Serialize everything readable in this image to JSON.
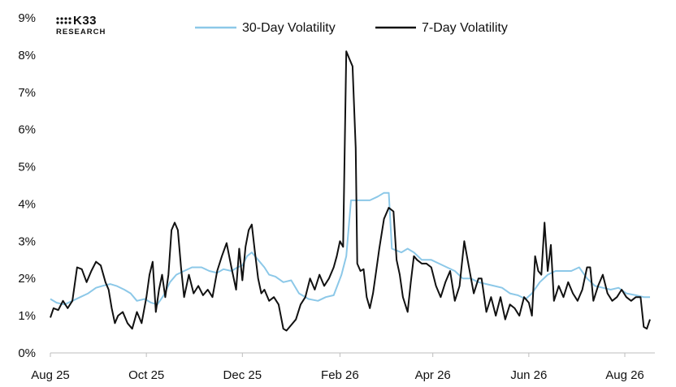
{
  "logo": {
    "name": "K33",
    "sub": "RESEARCH"
  },
  "chart_data": {
    "type": "line",
    "title": "",
    "xlabel": "",
    "ylabel": "",
    "x_ticks": [
      "Aug 25",
      "Oct 25",
      "Dec 25",
      "Feb 26",
      "Apr 26",
      "Jun 26",
      "Aug 26"
    ],
    "y_ticks": [
      "0%",
      "1%",
      "2%",
      "3%",
      "4%",
      "5%",
      "6%",
      "7%",
      "8%",
      "9%"
    ],
    "ylim": [
      0,
      9
    ],
    "x_range": [
      "2025-08-01",
      "2026-08-17"
    ],
    "grid": false,
    "legend_position": "top-center",
    "colors": {
      "30d": "#8cc8e8",
      "7d": "#111111"
    },
    "series": [
      {
        "name": "30-Day Volatility",
        "key": "30d",
        "points": [
          [
            "2025-08-01",
            1.45
          ],
          [
            "2025-08-05",
            1.35
          ],
          [
            "2025-08-10",
            1.3
          ],
          [
            "2025-08-15",
            1.4
          ],
          [
            "2025-08-20",
            1.5
          ],
          [
            "2025-08-25",
            1.6
          ],
          [
            "2025-08-30",
            1.75
          ],
          [
            "2025-09-03",
            1.8
          ],
          [
            "2025-09-08",
            1.85
          ],
          [
            "2025-09-12",
            1.8
          ],
          [
            "2025-09-17",
            1.7
          ],
          [
            "2025-09-21",
            1.6
          ],
          [
            "2025-09-25",
            1.4
          ],
          [
            "2025-09-30",
            1.45
          ],
          [
            "2025-10-04",
            1.35
          ],
          [
            "2025-10-08",
            1.3
          ],
          [
            "2025-10-12",
            1.55
          ],
          [
            "2025-10-16",
            1.9
          ],
          [
            "2025-10-20",
            2.1
          ],
          [
            "2025-10-25",
            2.2
          ],
          [
            "2025-10-30",
            2.3
          ],
          [
            "2025-11-05",
            2.3
          ],
          [
            "2025-11-10",
            2.2
          ],
          [
            "2025-11-15",
            2.15
          ],
          [
            "2025-11-19",
            2.25
          ],
          [
            "2025-11-24",
            2.2
          ],
          [
            "2025-11-28",
            2.3
          ],
          [
            "2025-12-01",
            2.35
          ],
          [
            "2025-12-04",
            2.6
          ],
          [
            "2025-12-07",
            2.7
          ],
          [
            "2025-12-11",
            2.5
          ],
          [
            "2025-12-15",
            2.3
          ],
          [
            "2025-12-18",
            2.1
          ],
          [
            "2025-12-22",
            2.05
          ],
          [
            "2025-12-27",
            1.9
          ],
          [
            "2026-01-01",
            1.95
          ],
          [
            "2026-01-06",
            1.6
          ],
          [
            "2026-01-12",
            1.45
          ],
          [
            "2026-01-18",
            1.4
          ],
          [
            "2026-01-23",
            1.5
          ],
          [
            "2026-01-28",
            1.55
          ],
          [
            "2026-02-02",
            2.1
          ],
          [
            "2026-02-05",
            2.6
          ],
          [
            "2026-02-08",
            4.1
          ],
          [
            "2026-02-14",
            4.1
          ],
          [
            "2026-02-20",
            4.1
          ],
          [
            "2026-02-25",
            4.2
          ],
          [
            "2026-03-01",
            4.3
          ],
          [
            "2026-03-04",
            4.3
          ],
          [
            "2026-03-06",
            2.8
          ],
          [
            "2026-03-12",
            2.7
          ],
          [
            "2026-03-16",
            2.8
          ],
          [
            "2026-03-20",
            2.7
          ],
          [
            "2026-03-25",
            2.5
          ],
          [
            "2026-03-31",
            2.5
          ],
          [
            "2026-04-05",
            2.4
          ],
          [
            "2026-04-10",
            2.3
          ],
          [
            "2026-04-15",
            2.2
          ],
          [
            "2026-04-20",
            2.0
          ],
          [
            "2026-04-25",
            2.0
          ],
          [
            "2026-04-30",
            1.9
          ],
          [
            "2026-05-05",
            1.85
          ],
          [
            "2026-05-10",
            1.8
          ],
          [
            "2026-05-15",
            1.75
          ],
          [
            "2026-05-20",
            1.6
          ],
          [
            "2026-05-25",
            1.55
          ],
          [
            "2026-05-30",
            1.45
          ],
          [
            "2026-06-03",
            1.6
          ],
          [
            "2026-06-08",
            1.9
          ],
          [
            "2026-06-13",
            2.1
          ],
          [
            "2026-06-18",
            2.2
          ],
          [
            "2026-06-23",
            2.2
          ],
          [
            "2026-06-28",
            2.2
          ],
          [
            "2026-07-03",
            2.3
          ],
          [
            "2026-07-08",
            2.0
          ],
          [
            "2026-07-13",
            1.8
          ],
          [
            "2026-07-18",
            1.75
          ],
          [
            "2026-07-23",
            1.7
          ],
          [
            "2026-07-28",
            1.75
          ],
          [
            "2026-08-02",
            1.6
          ],
          [
            "2026-08-08",
            1.55
          ],
          [
            "2026-08-13",
            1.5
          ],
          [
            "2026-08-17",
            1.5
          ]
        ]
      },
      {
        "name": "7-Day Volatility",
        "key": "7d",
        "points": [
          [
            "2025-08-01",
            0.95
          ],
          [
            "2025-08-03",
            1.2
          ],
          [
            "2025-08-06",
            1.15
          ],
          [
            "2025-08-09",
            1.4
          ],
          [
            "2025-08-12",
            1.2
          ],
          [
            "2025-08-15",
            1.4
          ],
          [
            "2025-08-18",
            2.3
          ],
          [
            "2025-08-21",
            2.25
          ],
          [
            "2025-08-24",
            1.9
          ],
          [
            "2025-08-27",
            2.2
          ],
          [
            "2025-08-30",
            2.45
          ],
          [
            "2025-09-02",
            2.35
          ],
          [
            "2025-09-05",
            1.9
          ],
          [
            "2025-09-07",
            1.7
          ],
          [
            "2025-09-09",
            1.2
          ],
          [
            "2025-09-11",
            0.8
          ],
          [
            "2025-09-13",
            1.0
          ],
          [
            "2025-09-16",
            1.1
          ],
          [
            "2025-09-19",
            0.8
          ],
          [
            "2025-09-22",
            0.65
          ],
          [
            "2025-09-25",
            1.1
          ],
          [
            "2025-09-28",
            0.8
          ],
          [
            "2025-10-01",
            1.5
          ],
          [
            "2025-10-03",
            2.1
          ],
          [
            "2025-10-05",
            2.45
          ],
          [
            "2025-10-07",
            1.1
          ],
          [
            "2025-10-09",
            1.7
          ],
          [
            "2025-10-11",
            2.1
          ],
          [
            "2025-10-13",
            1.5
          ],
          [
            "2025-10-15",
            2.1
          ],
          [
            "2025-10-17",
            3.3
          ],
          [
            "2025-10-19",
            3.5
          ],
          [
            "2025-10-21",
            3.3
          ],
          [
            "2025-10-23",
            2.3
          ],
          [
            "2025-10-25",
            1.5
          ],
          [
            "2025-10-28",
            2.1
          ],
          [
            "2025-10-31",
            1.6
          ],
          [
            "2025-11-03",
            1.8
          ],
          [
            "2025-11-06",
            1.55
          ],
          [
            "2025-11-09",
            1.7
          ],
          [
            "2025-11-12",
            1.5
          ],
          [
            "2025-11-15",
            2.2
          ],
          [
            "2025-11-18",
            2.6
          ],
          [
            "2025-11-21",
            2.95
          ],
          [
            "2025-11-24",
            2.3
          ],
          [
            "2025-11-27",
            1.7
          ],
          [
            "2025-11-29",
            2.8
          ],
          [
            "2025-12-01",
            1.95
          ],
          [
            "2025-12-03",
            2.85
          ],
          [
            "2025-12-05",
            3.3
          ],
          [
            "2025-12-07",
            3.45
          ],
          [
            "2025-12-09",
            2.7
          ],
          [
            "2025-12-11",
            2.0
          ],
          [
            "2025-12-13",
            1.6
          ],
          [
            "2025-12-15",
            1.7
          ],
          [
            "2025-12-18",
            1.4
          ],
          [
            "2025-12-21",
            1.5
          ],
          [
            "2025-12-24",
            1.3
          ],
          [
            "2025-12-27",
            0.65
          ],
          [
            "2025-12-29",
            0.6
          ],
          [
            "2026-01-01",
            0.75
          ],
          [
            "2026-01-04",
            0.9
          ],
          [
            "2026-01-07",
            1.3
          ],
          [
            "2026-01-10",
            1.5
          ],
          [
            "2026-01-13",
            2.0
          ],
          [
            "2026-01-16",
            1.7
          ],
          [
            "2026-01-19",
            2.1
          ],
          [
            "2026-01-22",
            1.8
          ],
          [
            "2026-01-25",
            2.0
          ],
          [
            "2026-01-28",
            2.3
          ],
          [
            "2026-01-30",
            2.6
          ],
          [
            "2026-02-01",
            3.0
          ],
          [
            "2026-02-03",
            2.85
          ],
          [
            "2026-02-05",
            8.1
          ],
          [
            "2026-02-07",
            7.9
          ],
          [
            "2026-02-09",
            7.7
          ],
          [
            "2026-02-11",
            5.5
          ],
          [
            "2026-02-12",
            2.4
          ],
          [
            "2026-02-14",
            2.2
          ],
          [
            "2026-02-16",
            2.25
          ],
          [
            "2026-02-18",
            1.5
          ],
          [
            "2026-02-20",
            1.2
          ],
          [
            "2026-02-22",
            1.6
          ],
          [
            "2026-02-24",
            2.2
          ],
          [
            "2026-02-26",
            2.8
          ],
          [
            "2026-03-01",
            3.6
          ],
          [
            "2026-03-04",
            3.9
          ],
          [
            "2026-03-07",
            3.8
          ],
          [
            "2026-03-09",
            2.5
          ],
          [
            "2026-03-11",
            2.1
          ],
          [
            "2026-03-13",
            1.5
          ],
          [
            "2026-03-16",
            1.1
          ],
          [
            "2026-03-18",
            1.9
          ],
          [
            "2026-03-20",
            2.6
          ],
          [
            "2026-03-22",
            2.5
          ],
          [
            "2026-03-25",
            2.4
          ],
          [
            "2026-03-28",
            2.4
          ],
          [
            "2026-03-31",
            2.3
          ],
          [
            "2026-04-03",
            1.8
          ],
          [
            "2026-04-06",
            1.5
          ],
          [
            "2026-04-09",
            1.9
          ],
          [
            "2026-04-12",
            2.2
          ],
          [
            "2026-04-15",
            1.4
          ],
          [
            "2026-04-18",
            1.8
          ],
          [
            "2026-04-21",
            3.0
          ],
          [
            "2026-04-24",
            2.3
          ],
          [
            "2026-04-27",
            1.6
          ],
          [
            "2026-04-30",
            2.0
          ],
          [
            "2026-05-02",
            2.0
          ],
          [
            "2026-05-05",
            1.1
          ],
          [
            "2026-05-08",
            1.5
          ],
          [
            "2026-05-11",
            1.0
          ],
          [
            "2026-05-14",
            1.5
          ],
          [
            "2026-05-17",
            0.9
          ],
          [
            "2026-05-20",
            1.3
          ],
          [
            "2026-05-23",
            1.2
          ],
          [
            "2026-05-26",
            1.0
          ],
          [
            "2026-05-29",
            1.5
          ],
          [
            "2026-06-01",
            1.35
          ],
          [
            "2026-06-03",
            1.0
          ],
          [
            "2026-06-05",
            2.6
          ],
          [
            "2026-06-07",
            2.2
          ],
          [
            "2026-06-09",
            2.1
          ],
          [
            "2026-06-11",
            3.5
          ],
          [
            "2026-06-13",
            2.2
          ],
          [
            "2026-06-15",
            2.9
          ],
          [
            "2026-06-17",
            1.4
          ],
          [
            "2026-06-20",
            1.8
          ],
          [
            "2026-06-23",
            1.5
          ],
          [
            "2026-06-26",
            1.9
          ],
          [
            "2026-06-29",
            1.6
          ],
          [
            "2026-07-02",
            1.4
          ],
          [
            "2026-07-05",
            1.7
          ],
          [
            "2026-07-08",
            2.3
          ],
          [
            "2026-07-10",
            2.3
          ],
          [
            "2026-07-12",
            1.4
          ],
          [
            "2026-07-15",
            1.8
          ],
          [
            "2026-07-18",
            2.1
          ],
          [
            "2026-07-21",
            1.6
          ],
          [
            "2026-07-24",
            1.4
          ],
          [
            "2026-07-27",
            1.5
          ],
          [
            "2026-07-30",
            1.7
          ],
          [
            "2026-08-02",
            1.5
          ],
          [
            "2026-08-05",
            1.4
          ],
          [
            "2026-08-08",
            1.5
          ],
          [
            "2026-08-11",
            1.5
          ],
          [
            "2026-08-13",
            0.7
          ],
          [
            "2026-08-15",
            0.65
          ],
          [
            "2026-08-17",
            0.9
          ]
        ]
      }
    ],
    "x_tick_dates": [
      "2025-08-01",
      "2025-10-01",
      "2025-12-01",
      "2026-02-01",
      "2026-04-01",
      "2026-06-01",
      "2026-08-01"
    ]
  }
}
